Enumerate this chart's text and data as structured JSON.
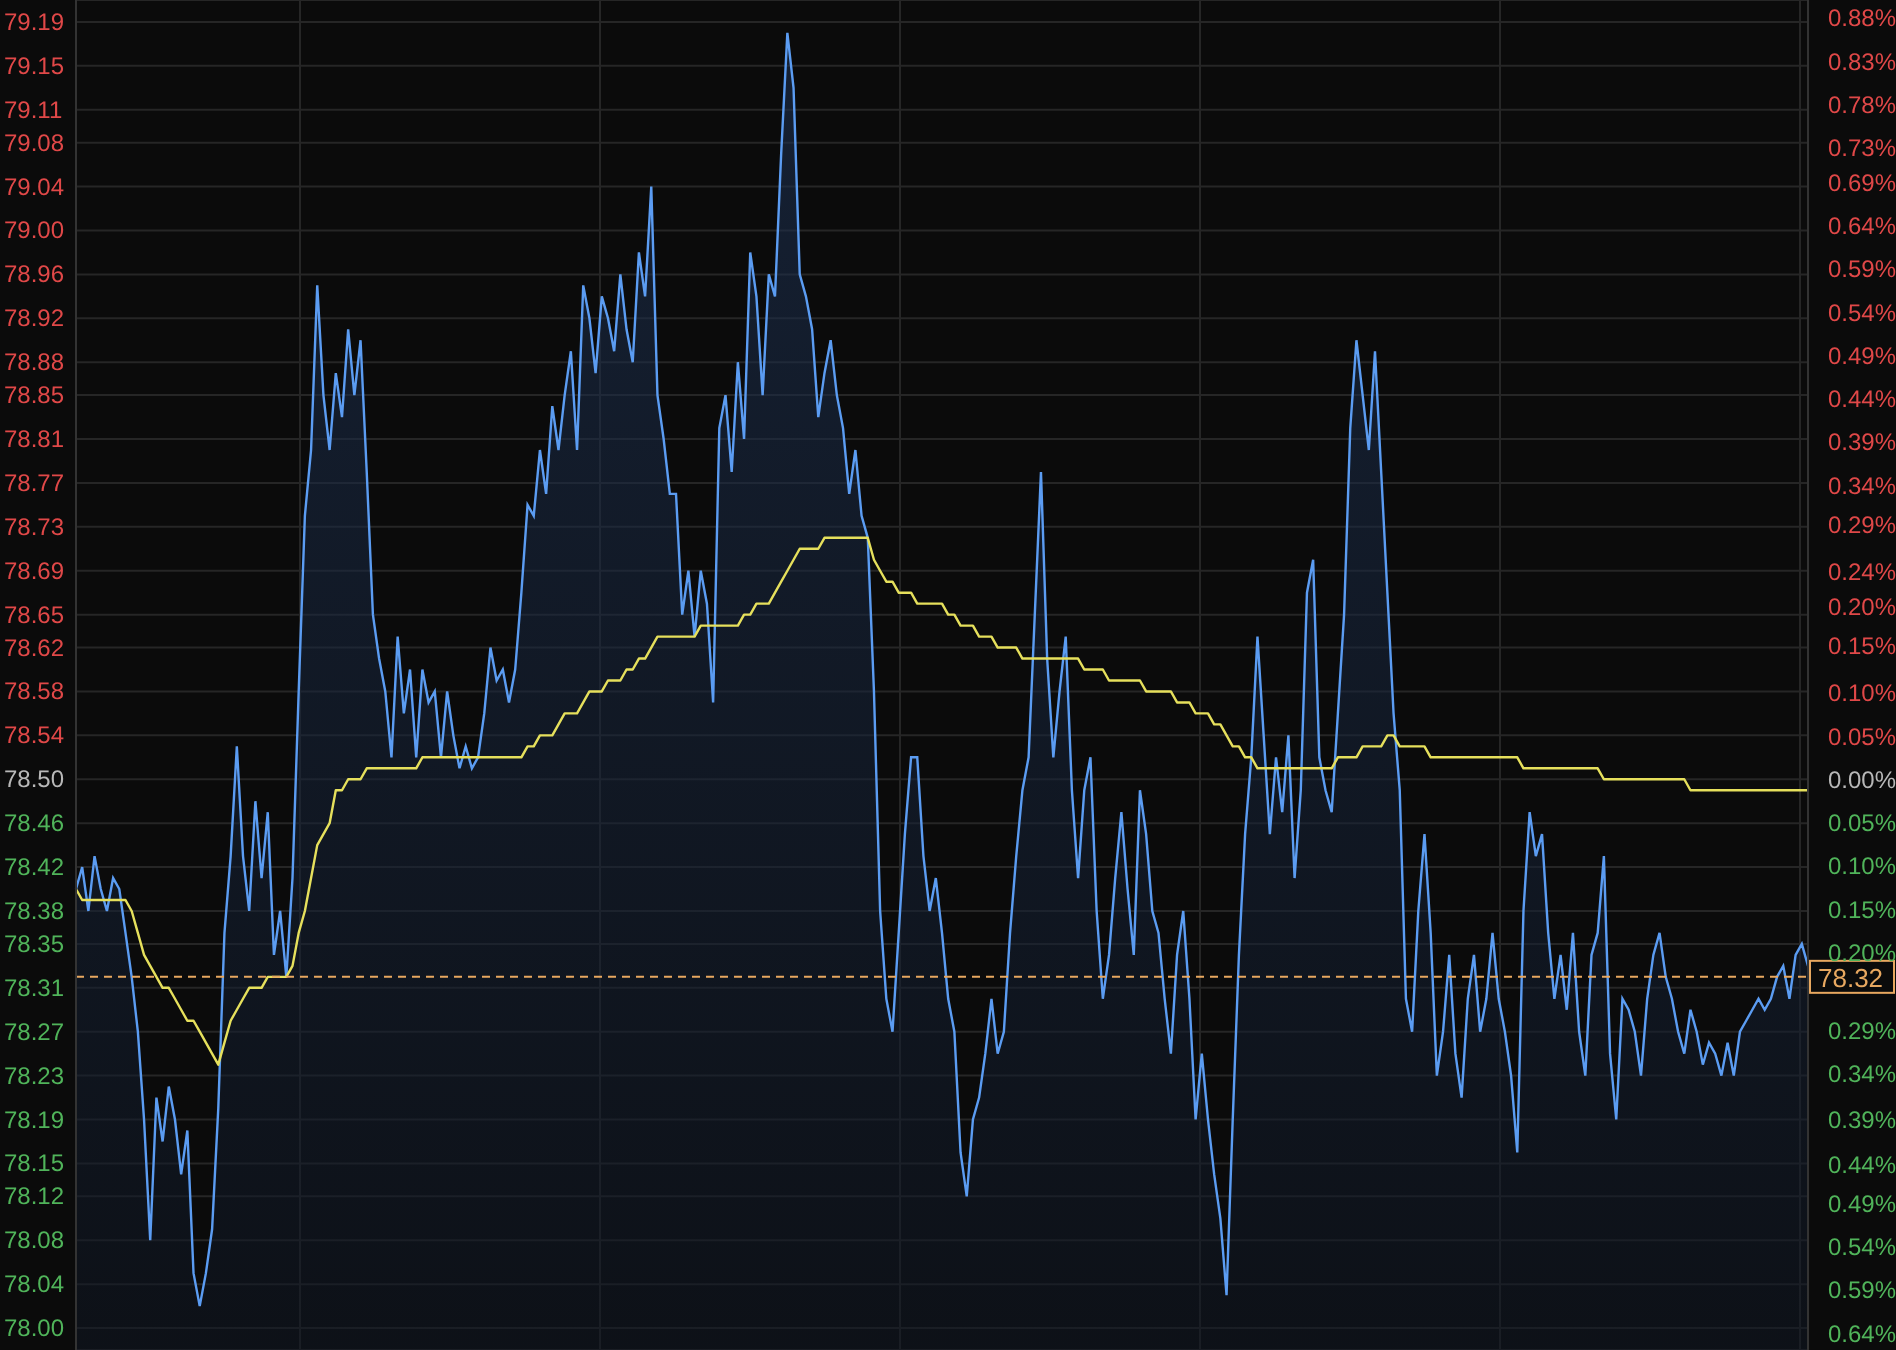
{
  "chart_data": {
    "type": "area",
    "categories": [
      null,
      null,
      null,
      null,
      null,
      null,
      null,
      null,
      null,
      null,
      null,
      null,
      null,
      null,
      null,
      null,
      null,
      null,
      null,
      null,
      null,
      null,
      null,
      null,
      null,
      null,
      null,
      null,
      null,
      null,
      null,
      null,
      null,
      null,
      null,
      null,
      null,
      null,
      null,
      null,
      null,
      null,
      null,
      null,
      null,
      null,
      null,
      null,
      null,
      null,
      null,
      null,
      null,
      null,
      null,
      null,
      null,
      null,
      null,
      null,
      null,
      null,
      null,
      null,
      null,
      null,
      null,
      null,
      null,
      null,
      null,
      null,
      null,
      null,
      null,
      null,
      null,
      null,
      null,
      null,
      null,
      null,
      null,
      null,
      null,
      null,
      null,
      null,
      null,
      null,
      null,
      null,
      null,
      null,
      null,
      null,
      null,
      null,
      null,
      null,
      null,
      null,
      null,
      null,
      null,
      null,
      null,
      null,
      null,
      null,
      null,
      null,
      null,
      null,
      null,
      null,
      null,
      null,
      null,
      null,
      null,
      null,
      null,
      null,
      null,
      null,
      null,
      null,
      null,
      null,
      null,
      null,
      null,
      null,
      null,
      null,
      null,
      null,
      null,
      null,
      null,
      null,
      null,
      null,
      null,
      null,
      null,
      null,
      null,
      null,
      null,
      null,
      null,
      null,
      null,
      null,
      null,
      null,
      null,
      null,
      null,
      null,
      null,
      null,
      null,
      null,
      null,
      null,
      null,
      null,
      null,
      null,
      null,
      null,
      null,
      null,
      null,
      null,
      null,
      null,
      null,
      null,
      null,
      null,
      null,
      null,
      null,
      null,
      null,
      null,
      null,
      null,
      null,
      null,
      null,
      null,
      null,
      null,
      null,
      null,
      null,
      null,
      null,
      null,
      null,
      null,
      null,
      null,
      null,
      null,
      null,
      null,
      null,
      null,
      null,
      null,
      null,
      null,
      null,
      null,
      null,
      null,
      null,
      null,
      null,
      null,
      null,
      null,
      null,
      null,
      null,
      null,
      null,
      null,
      null,
      null,
      null,
      null,
      null,
      null,
      null,
      null,
      null,
      null,
      null,
      null,
      null,
      null,
      null,
      null,
      null,
      null,
      null,
      null,
      null,
      null,
      null,
      null,
      null,
      null,
      null,
      null,
      null,
      null,
      null,
      null,
      null,
      null,
      null,
      null,
      null,
      null,
      null,
      null,
      null,
      null,
      null,
      null,
      null,
      null,
      null
    ],
    "series": [
      {
        "color": "#5b9cf2",
        "values": [
          78.4,
          78.42,
          78.38,
          78.43,
          78.4,
          78.38,
          78.41,
          78.4,
          78.36,
          78.32,
          78.27,
          78.19,
          78.08,
          78.21,
          78.17,
          78.22,
          78.19,
          78.14,
          78.18,
          78.05,
          78.02,
          78.05,
          78.09,
          78.2,
          78.36,
          78.43,
          78.53,
          78.43,
          78.38,
          78.48,
          78.41,
          78.47,
          78.34,
          78.38,
          78.32,
          78.41,
          78.58,
          78.74,
          78.8,
          78.95,
          78.85,
          78.8,
          78.87,
          78.83,
          78.91,
          78.85,
          78.9,
          78.78,
          78.65,
          78.61,
          78.58,
          78.52,
          78.63,
          78.56,
          78.6,
          78.52,
          78.6,
          78.57,
          78.58,
          78.52,
          78.58,
          78.54,
          78.51,
          78.53,
          78.51,
          78.52,
          78.56,
          78.62,
          78.59,
          78.6,
          78.57,
          78.6,
          78.67,
          78.75,
          78.74,
          78.8,
          78.76,
          78.84,
          78.8,
          78.85,
          78.89,
          78.8,
          78.95,
          78.92,
          78.87,
          78.94,
          78.92,
          78.89,
          78.96,
          78.91,
          78.88,
          78.98,
          78.94,
          79.04,
          78.85,
          78.81,
          78.76,
          78.76,
          78.65,
          78.69,
          78.63,
          78.69,
          78.66,
          78.57,
          78.82,
          78.85,
          78.78,
          78.88,
          78.81,
          78.98,
          78.94,
          78.85,
          78.96,
          78.94,
          79.07,
          79.18,
          79.13,
          78.96,
          78.94,
          78.91,
          78.83,
          78.87,
          78.9,
          78.85,
          78.82,
          78.76,
          78.8,
          78.74,
          78.72,
          78.58,
          78.38,
          78.3,
          78.27,
          78.36,
          78.45,
          78.52,
          78.52,
          78.43,
          78.38,
          78.41,
          78.36,
          78.3,
          78.27,
          78.16,
          78.12,
          78.19,
          78.21,
          78.25,
          78.3,
          78.25,
          78.27,
          78.36,
          78.43,
          78.49,
          78.52,
          78.65,
          78.78,
          78.61,
          78.52,
          78.58,
          78.63,
          78.49,
          78.41,
          78.49,
          78.52,
          78.38,
          78.3,
          78.34,
          78.41,
          78.47,
          78.4,
          78.34,
          78.49,
          78.45,
          78.38,
          78.36,
          78.3,
          78.25,
          78.34,
          78.38,
          78.3,
          78.19,
          78.25,
          78.19,
          78.14,
          78.1,
          78.03,
          78.19,
          78.34,
          78.45,
          78.52,
          78.63,
          78.54,
          78.45,
          78.52,
          78.47,
          78.54,
          78.41,
          78.49,
          78.67,
          78.7,
          78.52,
          78.49,
          78.47,
          78.56,
          78.65,
          78.82,
          78.9,
          78.85,
          78.8,
          78.89,
          78.78,
          78.67,
          78.56,
          78.49,
          78.3,
          78.27,
          78.38,
          78.45,
          78.36,
          78.23,
          78.27,
          78.34,
          78.25,
          78.21,
          78.3,
          78.34,
          78.27,
          78.3,
          78.36,
          78.3,
          78.27,
          78.23,
          78.16,
          78.38,
          78.47,
          78.43,
          78.45,
          78.36,
          78.3,
          78.34,
          78.29,
          78.36,
          78.27,
          78.23,
          78.34,
          78.36,
          78.43,
          78.25,
          78.19,
          78.3,
          78.29,
          78.27,
          78.23,
          78.3,
          78.34,
          78.36,
          78.32,
          78.3,
          78.27,
          78.25,
          78.29,
          78.27,
          78.24,
          78.26,
          78.25,
          78.23,
          78.26,
          78.23,
          78.27,
          78.28,
          78.29,
          78.3,
          78.29,
          78.3,
          78.32,
          78.33,
          78.3,
          78.34,
          78.35,
          78.33
        ]
      },
      {
        "type": "line",
        "color": "#e6e05c",
        "values": [
          78.4,
          78.39,
          78.39,
          78.39,
          78.39,
          78.39,
          78.39,
          78.39,
          78.39,
          78.38,
          78.36,
          78.34,
          78.33,
          78.32,
          78.31,
          78.31,
          78.3,
          78.29,
          78.28,
          78.28,
          78.27,
          78.26,
          78.25,
          78.24,
          78.26,
          78.28,
          78.29,
          78.3,
          78.31,
          78.31,
          78.31,
          78.32,
          78.32,
          78.32,
          78.32,
          78.33,
          78.36,
          78.38,
          78.41,
          78.44,
          78.45,
          78.46,
          78.49,
          78.49,
          78.5,
          78.5,
          78.5,
          78.51,
          78.51,
          78.51,
          78.51,
          78.51,
          78.51,
          78.51,
          78.51,
          78.51,
          78.52,
          78.52,
          78.52,
          78.52,
          78.52,
          78.52,
          78.52,
          78.52,
          78.52,
          78.52,
          78.52,
          78.52,
          78.52,
          78.52,
          78.52,
          78.52,
          78.52,
          78.53,
          78.53,
          78.54,
          78.54,
          78.54,
          78.55,
          78.56,
          78.56,
          78.56,
          78.57,
          78.58,
          78.58,
          78.58,
          78.59,
          78.59,
          78.59,
          78.6,
          78.6,
          78.61,
          78.61,
          78.62,
          78.63,
          78.63,
          78.63,
          78.63,
          78.63,
          78.63,
          78.63,
          78.64,
          78.64,
          78.64,
          78.64,
          78.64,
          78.64,
          78.64,
          78.65,
          78.65,
          78.66,
          78.66,
          78.66,
          78.67,
          78.68,
          78.69,
          78.7,
          78.71,
          78.71,
          78.71,
          78.71,
          78.72,
          78.72,
          78.72,
          78.72,
          78.72,
          78.72,
          78.72,
          78.72,
          78.7,
          78.69,
          78.68,
          78.68,
          78.67,
          78.67,
          78.67,
          78.66,
          78.66,
          78.66,
          78.66,
          78.66,
          78.65,
          78.65,
          78.64,
          78.64,
          78.64,
          78.63,
          78.63,
          78.63,
          78.62,
          78.62,
          78.62,
          78.62,
          78.61,
          78.61,
          78.61,
          78.61,
          78.61,
          78.61,
          78.61,
          78.61,
          78.61,
          78.61,
          78.6,
          78.6,
          78.6,
          78.6,
          78.59,
          78.59,
          78.59,
          78.59,
          78.59,
          78.59,
          78.58,
          78.58,
          78.58,
          78.58,
          78.58,
          78.57,
          78.57,
          78.57,
          78.56,
          78.56,
          78.56,
          78.55,
          78.55,
          78.54,
          78.53,
          78.53,
          78.52,
          78.52,
          78.51,
          78.51,
          78.51,
          78.51,
          78.51,
          78.51,
          78.51,
          78.51,
          78.51,
          78.51,
          78.51,
          78.51,
          78.51,
          78.52,
          78.52,
          78.52,
          78.52,
          78.53,
          78.53,
          78.53,
          78.53,
          78.54,
          78.54,
          78.53,
          78.53,
          78.53,
          78.53,
          78.53,
          78.52,
          78.52,
          78.52,
          78.52,
          78.52,
          78.52,
          78.52,
          78.52,
          78.52,
          78.52,
          78.52,
          78.52,
          78.52,
          78.52,
          78.52,
          78.51,
          78.51,
          78.51,
          78.51,
          78.51,
          78.51,
          78.51,
          78.51,
          78.51,
          78.51,
          78.51,
          78.51,
          78.51,
          78.5,
          78.5,
          78.5,
          78.5,
          78.5,
          78.5,
          78.5,
          78.5,
          78.5,
          78.5,
          78.5,
          78.5,
          78.5,
          78.5,
          78.49,
          78.49,
          78.49,
          78.49,
          78.49,
          78.49,
          78.49,
          78.49,
          78.49,
          78.49,
          78.49,
          78.49,
          78.49,
          78.49,
          78.49,
          78.49,
          78.49,
          78.49,
          78.49,
          78.49
        ]
      }
    ],
    "ylim": [
      77.98,
      79.21
    ],
    "yticks": [
      79.19,
      79.15,
      79.11,
      79.08,
      79.04,
      {
        "value": 79,
        "label": "79.00"
      },
      78.96,
      78.92,
      78.88,
      78.85,
      78.81,
      78.77,
      78.73,
      78.69,
      78.65,
      78.62,
      78.58,
      78.54,
      {
        "value": 78.5,
        "label": "78.50"
      },
      78.46,
      78.42,
      78.38,
      78.35,
      78.31,
      78.27,
      78.23,
      78.19,
      78.15,
      78.12,
      78.08,
      78.04,
      {
        "value": 78,
        "label": "78.00"
      }
    ],
    "y2lim": [
      -0.66,
      0.9
    ],
    "y2ticks": [
      {
        "value": 0.88,
        "label": "0.88%"
      },
      {
        "value": 0.83,
        "label": "0.83%"
      },
      {
        "value": 0.78,
        "label": "0.78%"
      },
      {
        "value": 0.73,
        "label": "0.73%"
      },
      {
        "value": 0.69,
        "label": "0.69%"
      },
      {
        "value": 0.64,
        "label": "0.64%"
      },
      {
        "value": 0.59,
        "label": "0.59%"
      },
      {
        "value": 0.54,
        "label": "0.54%"
      },
      {
        "value": 0.49,
        "label": "0.49%"
      },
      {
        "value": 0.44,
        "label": "0.44%"
      },
      {
        "value": 0.39,
        "label": "0.39%"
      },
      {
        "value": 0.34,
        "label": "0.34%"
      },
      {
        "value": 0.2945,
        "label": "0.29%"
      },
      {
        "value": 0.24,
        "label": "0.24%"
      },
      {
        "value": 0.2,
        "label": "0.20%"
      },
      {
        "value": 0.1543,
        "label": "0.15%"
      },
      {
        "value": 0.1,
        "label": "0.10%"
      },
      {
        "value": 0.05,
        "label": "0.05%"
      },
      {
        "value": 0,
        "label": "0.00%"
      },
      {
        "value": -0.05,
        "label": "0.05%"
      },
      {
        "value": -0.1,
        "label": "0.10%"
      },
      {
        "value": -0.15,
        "label": "0.15%"
      },
      {
        "value": -0.2,
        "label": "0.20%"
      },
      {
        "value": -0.29,
        "label": "0.29%"
      },
      {
        "value": -0.34,
        "label": "0.34%"
      },
      {
        "value": -0.3936,
        "label": "0.39%"
      },
      {
        "value": -0.4446,
        "label": "0.44%"
      },
      {
        "value": -0.49,
        "label": "0.49%"
      },
      {
        "value": -0.54,
        "label": "0.54%"
      },
      {
        "value": -0.59,
        "label": "0.59%"
      },
      {
        "value": -0.64,
        "label": "0.64%"
      }
    ],
    "ref_lines": [
      {
        "axis": "y",
        "value": 78.32,
        "label": "78.32",
        "color": "#e8a860",
        "line_style": "dashed"
      }
    ],
    "grid": true
  }
}
